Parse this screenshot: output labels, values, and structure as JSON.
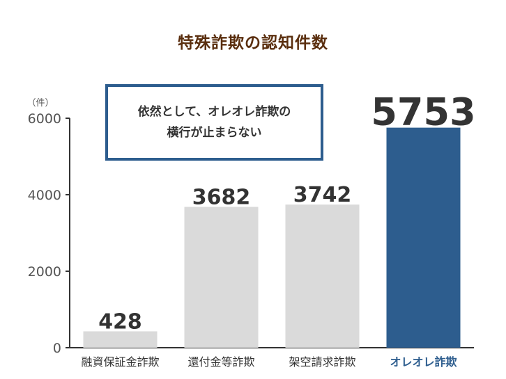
{
  "chart_data": {
    "type": "bar",
    "title": "特殊詐欺の認知件数",
    "ylabel": "（件）",
    "categories": [
      "融資保証金詐欺",
      "還付金等詐欺",
      "架空請求詐欺",
      "オレオレ詐欺"
    ],
    "values": [
      428,
      3682,
      3742,
      5753
    ],
    "ylim": [
      0,
      6000
    ],
    "yticks": [
      0,
      2000,
      4000,
      6000
    ],
    "grid": false,
    "bar_colors": [
      "#dadada",
      "#dadada",
      "#dadada",
      "#2d5d8e"
    ],
    "highlight_label_color": "#2d5d8e",
    "annotation": "依然として、オレオレ詐欺の\n横行が止まらない"
  }
}
